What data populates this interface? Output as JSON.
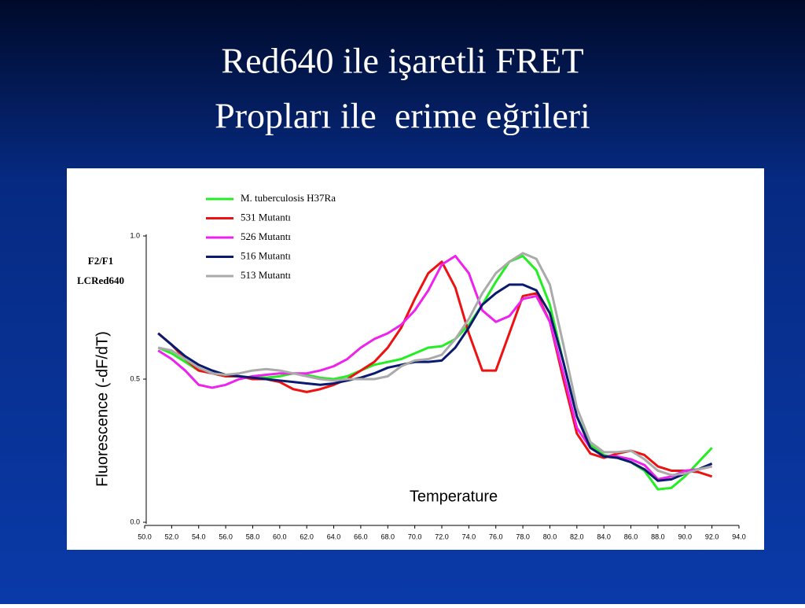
{
  "chart_data": {
    "type": "line",
    "title": [
      "Red640 ile işaretli FRET",
      "Propları ile  erime eğrileri"
    ],
    "annotations": [
      "F2/F1",
      "LCRed640"
    ],
    "ylabel": "Fluorescence (-dF/dT)",
    "xlabel": "Temperature",
    "x": [
      51,
      52,
      53,
      54,
      55,
      56,
      57,
      58,
      59,
      60,
      61,
      62,
      63,
      64,
      65,
      66,
      67,
      68,
      69,
      70,
      71,
      72,
      73,
      74,
      75,
      76,
      77,
      78,
      79,
      80,
      81,
      82,
      83,
      84,
      85,
      86,
      87,
      88,
      89,
      90,
      91,
      92
    ],
    "xlim": [
      50,
      94
    ],
    "xticks": [
      {
        "value": 50,
        "label": "50.0"
      },
      {
        "value": 52,
        "label": "52.0"
      },
      {
        "value": 54,
        "label": "54.0"
      },
      {
        "value": 56,
        "label": "56.0"
      },
      {
        "value": 58,
        "label": "58.0"
      },
      {
        "value": 60,
        "label": "60.0"
      },
      {
        "value": 62,
        "label": "62.0"
      },
      {
        "value": 64,
        "label": "64.0"
      },
      {
        "value": 66,
        "label": "66.0"
      },
      {
        "value": 68,
        "label": "68.0"
      },
      {
        "value": 70,
        "label": "70.0"
      },
      {
        "value": 72,
        "label": "72.0"
      },
      {
        "value": 74,
        "label": "74.0"
      },
      {
        "value": 76,
        "label": "76.0"
      },
      {
        "value": 78,
        "label": "78.0"
      },
      {
        "value": 80,
        "label": "80.0"
      },
      {
        "value": 82,
        "label": "82.0"
      },
      {
        "value": 84,
        "label": "84.0"
      },
      {
        "value": 86,
        "label": "86.0"
      },
      {
        "value": 88,
        "label": "88.0"
      },
      {
        "value": 90,
        "label": "90.0"
      },
      {
        "value": 92,
        "label": "92.0"
      },
      {
        "value": 94,
        "label": "94.0"
      }
    ],
    "ylim": [
      0,
      1
    ],
    "yticks": [
      {
        "value": 0,
        "label": "0.0"
      },
      {
        "value": 0.5,
        "label": "0.5"
      },
      {
        "value": 1,
        "label": "1.0"
      }
    ],
    "series": [
      {
        "name": "M. tuberculosis H37Ra",
        "color": "#22ee22",
        "values": [
          0.61,
          0.59,
          0.56,
          0.53,
          0.52,
          0.51,
          0.51,
          0.505,
          0.505,
          0.51,
          0.52,
          0.515,
          0.505,
          0.5,
          0.51,
          0.53,
          0.55,
          0.56,
          0.57,
          0.59,
          0.61,
          0.615,
          0.64,
          0.69,
          0.76,
          0.84,
          0.91,
          0.93,
          0.88,
          0.76,
          0.56,
          0.37,
          0.27,
          0.235,
          0.225,
          0.21,
          0.18,
          0.115,
          0.12,
          0.16,
          0.21,
          0.26
        ]
      },
      {
        "name": "531 Mutantı",
        "color": "#ee1111",
        "values": [
          0.66,
          0.62,
          0.57,
          0.53,
          0.52,
          0.51,
          0.51,
          0.5,
          0.5,
          0.49,
          0.465,
          0.455,
          0.465,
          0.48,
          0.5,
          0.53,
          0.56,
          0.61,
          0.68,
          0.78,
          0.87,
          0.91,
          0.82,
          0.66,
          0.53,
          0.53,
          0.66,
          0.79,
          0.8,
          0.7,
          0.5,
          0.31,
          0.24,
          0.225,
          0.24,
          0.25,
          0.235,
          0.195,
          0.18,
          0.18,
          0.175,
          0.16
        ]
      },
      {
        "name": "526 Mutantı",
        "color": "#ee22ee",
        "values": [
          0.6,
          0.57,
          0.53,
          0.48,
          0.47,
          0.48,
          0.5,
          0.51,
          0.515,
          0.52,
          0.52,
          0.52,
          0.53,
          0.545,
          0.57,
          0.61,
          0.64,
          0.66,
          0.69,
          0.74,
          0.81,
          0.9,
          0.93,
          0.87,
          0.74,
          0.7,
          0.72,
          0.78,
          0.79,
          0.7,
          0.52,
          0.33,
          0.26,
          0.23,
          0.23,
          0.22,
          0.2,
          0.15,
          0.16,
          0.18,
          0.185,
          0.195
        ]
      },
      {
        "name": "516 Mutantı",
        "color": "#0a1a6e",
        "values": [
          0.66,
          0.62,
          0.58,
          0.55,
          0.53,
          0.515,
          0.51,
          0.505,
          0.5,
          0.495,
          0.49,
          0.485,
          0.48,
          0.485,
          0.495,
          0.505,
          0.52,
          0.54,
          0.55,
          0.56,
          0.56,
          0.565,
          0.61,
          0.68,
          0.76,
          0.8,
          0.83,
          0.83,
          0.81,
          0.73,
          0.56,
          0.37,
          0.26,
          0.23,
          0.225,
          0.21,
          0.185,
          0.145,
          0.15,
          0.17,
          0.185,
          0.205
        ]
      },
      {
        "name": "513 Mutantı",
        "color": "#aaaaaa",
        "values": [
          0.61,
          0.6,
          0.57,
          0.54,
          0.52,
          0.515,
          0.52,
          0.53,
          0.535,
          0.53,
          0.52,
          0.51,
          0.5,
          0.495,
          0.5,
          0.5,
          0.5,
          0.51,
          0.545,
          0.565,
          0.57,
          0.585,
          0.64,
          0.71,
          0.8,
          0.87,
          0.91,
          0.94,
          0.92,
          0.83,
          0.62,
          0.4,
          0.28,
          0.245,
          0.245,
          0.25,
          0.22,
          0.18,
          0.165,
          0.17,
          0.185,
          0.195
        ]
      }
    ]
  }
}
